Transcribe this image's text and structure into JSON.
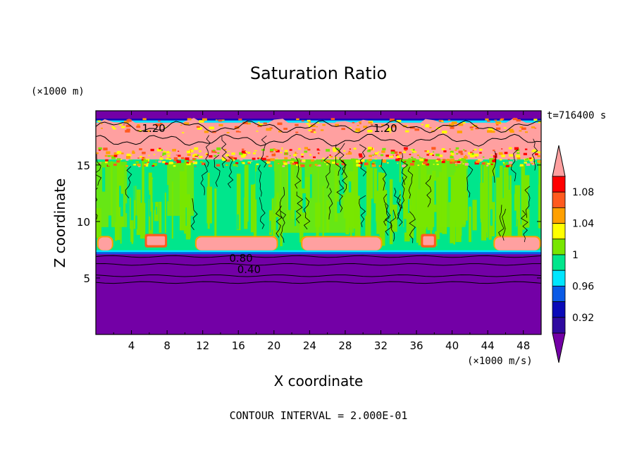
{
  "chart_data": {
    "type": "heatmap",
    "title": "Saturation Ratio",
    "xlabel": "X coordinate",
    "ylabel": "Z coordinate",
    "x_unit": "(×1000 m/s)",
    "y_unit": "(×1000 m)",
    "time_label": "t=716400 s",
    "footer": "CONTOUR INTERVAL = 2.000E-01",
    "xlim": [
      0,
      50
    ],
    "ylim": [
      0,
      19.8
    ],
    "x_ticks": [
      4,
      8,
      12,
      16,
      20,
      24,
      28,
      32,
      36,
      40,
      44,
      48
    ],
    "y_ticks": [
      5,
      10,
      15
    ],
    "x_tick_labels": [
      "4",
      "8",
      "12",
      "16",
      "20",
      "24",
      "28",
      "32",
      "36",
      "40",
      "44",
      "48"
    ],
    "y_tick_labels": [
      "5",
      "10",
      "15"
    ],
    "colorbar": {
      "levels": [
        0.92,
        0.94,
        0.96,
        0.98,
        1.0,
        1.02,
        1.04,
        1.06,
        1.08,
        1.1
      ],
      "tick_labels": [
        "0.92",
        "0.96",
        "1",
        "1.04",
        "1.08"
      ],
      "colors": [
        "#7300a6",
        "#2e0aa0",
        "#0a0ab8",
        "#0a5ae6",
        "#00e6ff",
        "#00e68c",
        "#78e600",
        "#ffff00",
        "#ffa000",
        "#ff5a1e",
        "#ff0000",
        "#ffa0a0"
      ]
    },
    "regions": [
      {
        "name": "dry-lower-layer",
        "z_range": [
          0,
          7.2
        ],
        "value": "<0.92",
        "color": "#7300a6"
      },
      {
        "name": "cloud-layer",
        "z_range": [
          7.2,
          15.5
        ],
        "value": "0.98-1.02",
        "color": "#00e68c"
      },
      {
        "name": "supersaturated-upper-layer",
        "z_range": [
          15.5,
          18.8
        ],
        "value": ">1.10",
        "color": "#ffa0a0"
      },
      {
        "name": "dry-top",
        "z_range": [
          18.8,
          19.8
        ],
        "value": "<0.92",
        "color": "#7300a6"
      }
    ],
    "pink_patches_x": [
      [
        0.3,
        1.8
      ],
      [
        11.3,
        20.3
      ],
      [
        23.2,
        32.0
      ],
      [
        44.8,
        49.8
      ]
    ],
    "contour_labels": [
      {
        "text": "1.20",
        "x": 6.5,
        "z": 18.3
      },
      {
        "text": "1.20",
        "x": 32.5,
        "z": 18.3
      },
      {
        "text": "0.80",
        "x": 16.3,
        "z": 6.8
      },
      {
        "text": "0.40",
        "x": 17.2,
        "z": 5.8
      }
    ]
  }
}
